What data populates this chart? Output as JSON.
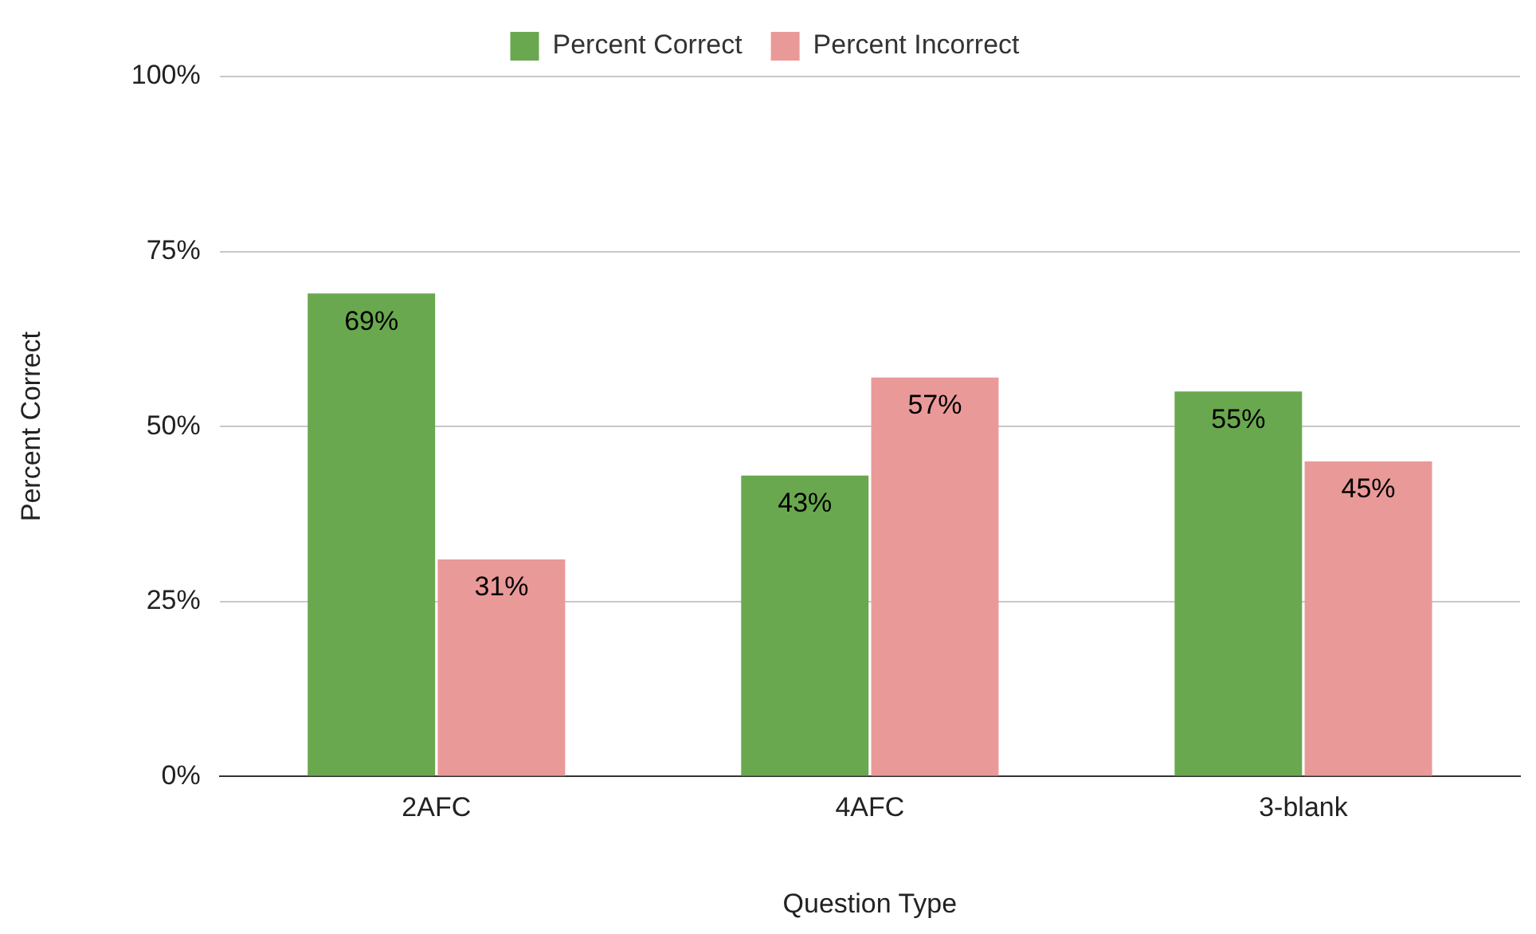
{
  "chart_data": {
    "type": "bar",
    "xlabel": "Question Type",
    "ylabel": "Percent Correct",
    "categories": [
      "2AFC",
      "4AFC",
      "3-blank"
    ],
    "series": [
      {
        "name": "Percent Correct",
        "color": "#6aa84f",
        "values": [
          69,
          43,
          55
        ],
        "value_labels": [
          "69%",
          "43%",
          "55%"
        ]
      },
      {
        "name": "Percent Incorrect",
        "color": "#ea9999",
        "values": [
          31,
          57,
          45
        ],
        "value_labels": [
          "31%",
          "57%",
          "45%"
        ]
      }
    ],
    "ylim": [
      0,
      100
    ],
    "yticks": [
      {
        "value": 0,
        "label": "0%"
      },
      {
        "value": 25,
        "label": "25%"
      },
      {
        "value": 50,
        "label": "50%"
      },
      {
        "value": 75,
        "label": "75%"
      },
      {
        "value": 100,
        "label": "100%"
      }
    ],
    "grid": "y",
    "legend": "top"
  }
}
